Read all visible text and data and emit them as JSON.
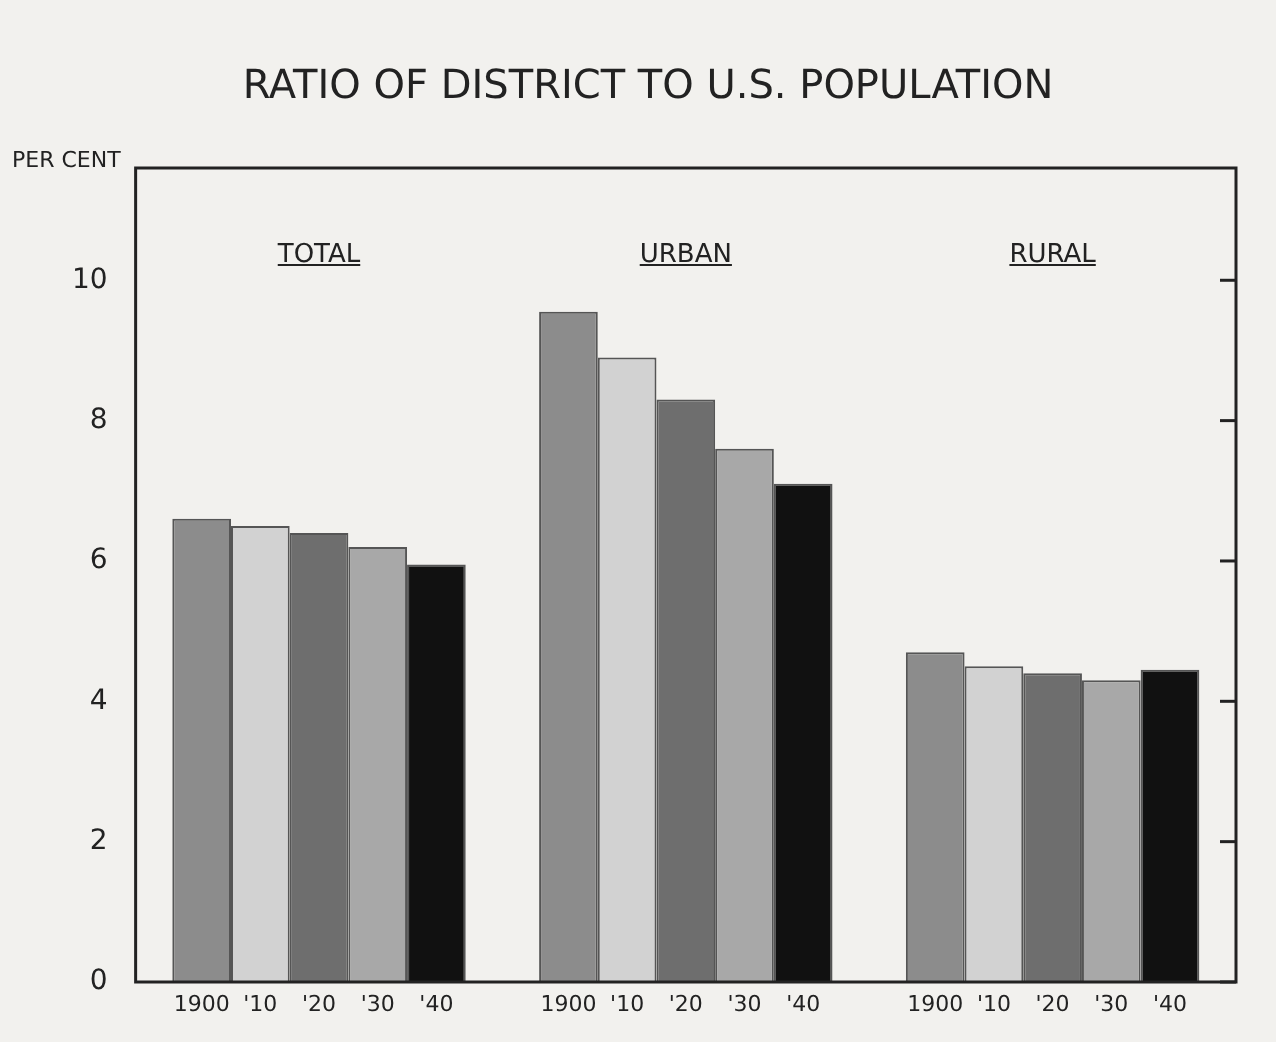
{
  "chart_data": {
    "type": "bar",
    "title": "RATIO OF DISTRICT TO U.S. POPULATION",
    "ylabel": "PER CENT",
    "categories": [
      "TOTAL",
      "URBAN",
      "RURAL"
    ],
    "series": [
      {
        "name": "1900",
        "color": "#8c8c8c",
        "values": [
          6.6,
          9.55,
          4.7
        ]
      },
      {
        "name": "'10",
        "color": "#d2d2d2",
        "values": [
          6.5,
          8.9,
          4.5
        ]
      },
      {
        "name": "'20",
        "color": "#6e6e6e",
        "values": [
          6.4,
          8.3,
          4.4
        ]
      },
      {
        "name": "'30",
        "color": "#a8a8a8",
        "values": [
          6.2,
          7.6,
          4.3
        ]
      },
      {
        "name": "'40",
        "color": "#111111",
        "values": [
          5.95,
          7.1,
          4.45
        ]
      }
    ],
    "ylim": [
      0,
      11.6
    ],
    "yticks": [
      0,
      2,
      4,
      6,
      8,
      10
    ],
    "grid": false,
    "legend": false
  }
}
